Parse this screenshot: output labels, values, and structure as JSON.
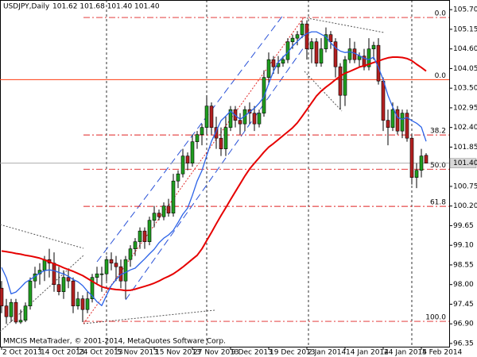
{
  "chart_data": {
    "type": "candlestick",
    "symbol": "USDJPY,Daily",
    "quote": "101.62 101.68 101.40 101.40",
    "footer": "MMCIS MetaTrader, © 2001-2014, MetaQuotes Software Corp.",
    "ylim": [
      96.26,
      105.97
    ],
    "yticks": [
      {
        "value": 105.7,
        "label": "105.70"
      },
      {
        "value": 105.15,
        "label": "105.15"
      },
      {
        "value": 104.6,
        "label": "104.60"
      },
      {
        "value": 104.05,
        "label": "104.05"
      },
      {
        "value": 103.5,
        "label": "103.50"
      },
      {
        "value": 102.95,
        "label": "102.95"
      },
      {
        "value": 102.4,
        "label": "102.40"
      },
      {
        "value": 101.85,
        "label": "101.85"
      },
      {
        "value": 100.75,
        "label": "100.75"
      },
      {
        "value": 100.2,
        "label": "100.20"
      },
      {
        "value": 99.65,
        "label": "99.65"
      },
      {
        "value": 99.1,
        "label": "99.10"
      },
      {
        "value": 98.55,
        "label": "98.55"
      },
      {
        "value": 98,
        "label": "98.00"
      },
      {
        "value": 97.45,
        "label": "97.45"
      },
      {
        "value": 96.9,
        "label": "96.90"
      },
      {
        "value": 96.35,
        "label": "96.35"
      }
    ],
    "current_price": {
      "value": 101.4,
      "label": "101.40"
    },
    "bull_color": "#1f9e1f",
    "bear_color": "#b32020",
    "categories": [
      "2 Oct 2013",
      null,
      null,
      null,
      null,
      null,
      null,
      null,
      "14 Oct 2013",
      null,
      null,
      null,
      null,
      null,
      null,
      null,
      "24 Oct 2013",
      null,
      null,
      null,
      null,
      null,
      null,
      null,
      "5 Nov 2013",
      null,
      null,
      null,
      null,
      null,
      null,
      null,
      "15 Nov 2013",
      null,
      null,
      null,
      null,
      null,
      null,
      null,
      "27 Nov 2013",
      null,
      null,
      null,
      null,
      null,
      null,
      null,
      "9 Dec 2013",
      null,
      null,
      null,
      null,
      null,
      null,
      null,
      "19 Dec 2013",
      null,
      null,
      null,
      null,
      null,
      null,
      null,
      "2 Jan 2014",
      null,
      null,
      null,
      null,
      null,
      null,
      null,
      "14 Jan 2014",
      null,
      null,
      null,
      null,
      null,
      null,
      null,
      "24 Jan 2014",
      null,
      null,
      null,
      null,
      null,
      null,
      null,
      "5 Feb 2014",
      null
    ],
    "ohlc": [
      [
        97.9,
        98.1,
        97.2,
        97.4
      ],
      [
        97.4,
        97.6,
        96.9,
        97.1
      ],
      [
        97.1,
        97.6,
        96.95,
        97.5
      ],
      [
        97.5,
        97.6,
        96.9,
        96.95
      ],
      [
        96.95,
        97.3,
        96.9,
        97.0
      ],
      [
        97.0,
        97.5,
        96.95,
        97.4
      ],
      [
        97.4,
        98.2,
        97.3,
        98.1
      ],
      [
        98.1,
        98.5,
        97.9,
        98.3
      ],
      [
        98.3,
        98.6,
        98.0,
        98.4
      ],
      [
        98.4,
        98.8,
        98.1,
        98.7
      ],
      [
        98.7,
        99.0,
        98.2,
        98.6
      ],
      [
        98.6,
        98.9,
        97.8,
        98.0
      ],
      [
        98.0,
        98.5,
        97.7,
        97.8
      ],
      [
        97.8,
        98.4,
        97.6,
        98.2
      ],
      [
        98.2,
        98.4,
        97.9,
        98.1
      ],
      [
        98.1,
        98.2,
        97.2,
        97.4
      ],
      [
        97.4,
        97.8,
        97.3,
        97.6
      ],
      [
        97.6,
        97.7,
        96.95,
        97.3
      ],
      [
        97.3,
        97.8,
        97.2,
        97.6
      ],
      [
        97.6,
        98.3,
        97.5,
        98.2
      ],
      [
        98.2,
        98.5,
        98.0,
        98.3
      ],
      [
        98.3,
        98.5,
        97.8,
        98.3
      ],
      [
        98.3,
        98.8,
        98.1,
        98.7
      ],
      [
        98.7,
        98.9,
        98.4,
        98.6
      ],
      [
        98.6,
        98.8,
        98.1,
        98.5
      ],
      [
        98.5,
        98.7,
        97.9,
        98.1
      ],
      [
        98.1,
        98.8,
        97.6,
        98.7
      ],
      [
        98.7,
        99.1,
        98.5,
        99.0
      ],
      [
        99.0,
        99.3,
        98.8,
        99.2
      ],
      [
        99.2,
        99.6,
        99.0,
        99.5
      ],
      [
        99.5,
        99.6,
        99.0,
        99.2
      ],
      [
        99.2,
        99.9,
        99.1,
        99.8
      ],
      [
        99.8,
        100.2,
        99.6,
        100.0
      ],
      [
        100.0,
        100.1,
        99.8,
        99.9
      ],
      [
        99.9,
        100.3,
        99.8,
        100.2
      ],
      [
        100.2,
        100.4,
        99.9,
        100.0
      ],
      [
        100.0,
        101.1,
        99.9,
        100.9
      ],
      [
        100.9,
        101.2,
        100.7,
        101.1
      ],
      [
        101.1,
        101.8,
        101.0,
        101.6
      ],
      [
        101.6,
        101.7,
        101.2,
        101.4
      ],
      [
        101.4,
        102.2,
        101.3,
        102.0
      ],
      [
        102.0,
        102.3,
        101.8,
        102.2
      ],
      [
        102.2,
        102.5,
        101.9,
        102.4
      ],
      [
        102.4,
        103.3,
        102.2,
        103.0
      ],
      [
        103.0,
        103.1,
        102.2,
        102.4
      ],
      [
        102.4,
        102.7,
        101.8,
        102.1
      ],
      [
        102.1,
        102.4,
        101.6,
        101.8
      ],
      [
        101.8,
        102.7,
        101.6,
        102.4
      ],
      [
        102.4,
        103.0,
        102.3,
        102.9
      ],
      [
        102.9,
        103.0,
        102.4,
        102.6
      ],
      [
        102.6,
        102.8,
        102.2,
        102.5
      ],
      [
        102.5,
        103.0,
        102.3,
        102.9
      ],
      [
        102.9,
        103.1,
        102.5,
        102.8
      ],
      [
        102.8,
        103.0,
        102.3,
        102.5
      ],
      [
        102.5,
        102.9,
        102.4,
        102.8
      ],
      [
        102.8,
        104.0,
        102.7,
        103.8
      ],
      [
        103.8,
        104.5,
        103.6,
        104.3
      ],
      [
        104.3,
        104.4,
        103.9,
        104.1
      ],
      [
        104.1,
        104.4,
        103.9,
        104.2
      ],
      [
        104.2,
        104.4,
        104.1,
        104.3
      ],
      [
        104.3,
        104.9,
        104.2,
        104.8
      ],
      [
        104.8,
        105.0,
        104.6,
        104.9
      ],
      [
        104.9,
        105.1,
        104.7,
        105.0
      ],
      [
        105.0,
        105.4,
        104.9,
        105.3
      ],
      [
        105.3,
        105.4,
        104.3,
        104.6
      ],
      [
        104.6,
        104.9,
        104.2,
        104.8
      ],
      [
        104.8,
        104.9,
        104.1,
        104.2
      ],
      [
        104.2,
        104.9,
        104.1,
        104.6
      ],
      [
        104.6,
        105.2,
        104.5,
        105.0
      ],
      [
        105.0,
        105.1,
        104.6,
        104.8
      ],
      [
        104.8,
        104.9,
        103.8,
        104.1
      ],
      [
        104.1,
        104.2,
        102.9,
        103.3
      ],
      [
        103.3,
        104.4,
        103.0,
        104.3
      ],
      [
        104.3,
        104.9,
        104.2,
        104.6
      ],
      [
        104.6,
        104.8,
        104.2,
        104.3
      ],
      [
        104.3,
        104.5,
        104.1,
        104.4
      ],
      [
        104.4,
        104.6,
        104.0,
        104.1
      ],
      [
        104.1,
        104.9,
        104.0,
        104.6
      ],
      [
        104.6,
        104.8,
        104.3,
        104.7
      ],
      [
        104.7,
        104.9,
        103.6,
        103.7
      ],
      [
        103.7,
        103.8,
        102.3,
        102.6
      ],
      [
        102.6,
        102.9,
        101.9,
        102.4
      ],
      [
        102.4,
        103.1,
        102.3,
        102.9
      ],
      [
        102.9,
        103.0,
        102.2,
        102.3
      ],
      [
        102.3,
        102.9,
        102.1,
        102.8
      ],
      [
        102.8,
        102.9,
        102.0,
        102.1
      ],
      [
        102.1,
        102.2,
        100.8,
        101.0
      ],
      [
        101.0,
        101.4,
        100.7,
        101.2
      ],
      [
        101.2,
        101.8,
        101.0,
        101.6
      ],
      [
        101.62,
        101.68,
        101.4,
        101.4
      ]
    ],
    "moving_averages": [
      {
        "color": "#e60000",
        "width": 2,
        "values": [
          98.94,
          98.92,
          98.9,
          98.87,
          98.85,
          98.82,
          98.8,
          98.77,
          98.74,
          98.69,
          98.64,
          98.58,
          98.53,
          98.47,
          98.42,
          98.37,
          98.31,
          98.25,
          98.17,
          98.09,
          98.01,
          97.94,
          97.9,
          97.88,
          97.86,
          97.85,
          97.83,
          97.84,
          97.87,
          97.91,
          97.95,
          97.99,
          98.04,
          98.1,
          98.17,
          98.23,
          98.3,
          98.39,
          98.49,
          98.6,
          98.71,
          98.82,
          99.0,
          99.23,
          99.46,
          99.7,
          99.93,
          100.15,
          100.38,
          100.6,
          100.82,
          101.04,
          101.24,
          101.4,
          101.55,
          101.71,
          101.85,
          101.95,
          102.06,
          102.17,
          102.28,
          102.39,
          102.53,
          102.71,
          102.9,
          103.09,
          103.28,
          103.42,
          103.53,
          103.63,
          103.74,
          103.84,
          103.92,
          103.97,
          104.03,
          104.09,
          104.13,
          104.17,
          104.22,
          104.26,
          104.31,
          104.35,
          104.37,
          104.37,
          104.36,
          104.33,
          104.27,
          104.17,
          104.08,
          103.98
        ]
      },
      {
        "color": "#2a62e8",
        "width": 1.3,
        "values": [
          98.48,
          98.19,
          97.74,
          97.79,
          97.92,
          98.06,
          98.14,
          98.23,
          98.32,
          98.39,
          98.41,
          98.39,
          98.34,
          98.3,
          98.23,
          98.14,
          98.08,
          97.97,
          97.81,
          97.68,
          97.52,
          97.41,
          97.7,
          97.97,
          98.14,
          98.28,
          98.34,
          98.41,
          98.46,
          98.59,
          98.72,
          98.86,
          98.99,
          99.17,
          99.3,
          99.39,
          99.52,
          99.74,
          99.97,
          100.14,
          100.5,
          100.9,
          101.19,
          101.61,
          102.01,
          102.3,
          102.59,
          102.72,
          102.86,
          102.74,
          102.63,
          102.72,
          102.83,
          102.94,
          103.08,
          103.26,
          103.63,
          103.97,
          104.23,
          104.37,
          104.5,
          104.68,
          104.81,
          104.94,
          105.03,
          105.08,
          105.08,
          105.01,
          104.94,
          104.77,
          104.63,
          104.54,
          104.5,
          104.52,
          104.48,
          104.41,
          104.34,
          104.3,
          104.37,
          104.08,
          103.74,
          103.3,
          102.97,
          102.68,
          102.63,
          102.68,
          102.59,
          102.52,
          102.41,
          102.01
        ]
      }
    ],
    "fibonacci": {
      "color": "#e02020",
      "levels": [
        {
          "label": "0.0",
          "price": 105.48
        },
        {
          "label": "38.2",
          "price": 102.19
        },
        {
          "label": "50.0",
          "price": 101.23
        },
        {
          "label": "61.8",
          "price": 100.19
        },
        {
          "label": "100.0",
          "price": 96.97
        }
      ]
    },
    "hline": {
      "label": "0.0",
      "price": 103.74,
      "color": "#ff3b10"
    }
  }
}
